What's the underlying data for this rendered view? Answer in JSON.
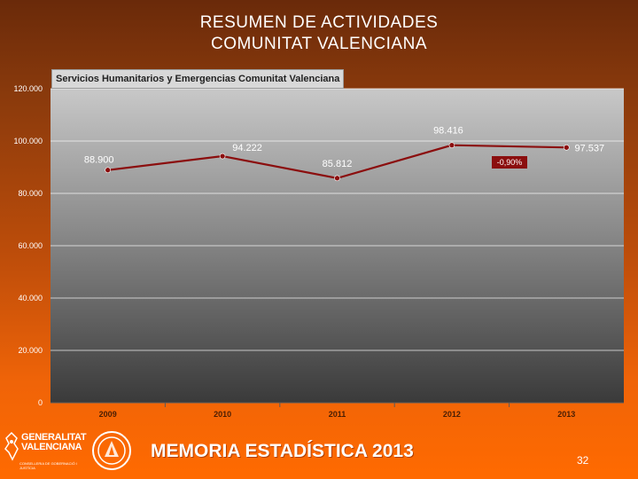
{
  "slide": {
    "title_line1": "RESUMEN DE ACTIVIDADES",
    "title_line2": "COMUNITAT VALENCIANA",
    "footer_title": "MEMORIA ESTADÍSTICA 2013",
    "page_number": "32",
    "logo_text_line1": "GENERALITAT",
    "logo_text_line2": "VALENCIANA",
    "logo_subtext": "CONSELLERIA DE GOBERNACIÓ I JUSTÍCIA"
  },
  "chart_data": {
    "type": "line",
    "title": "Servicios Humanitarios y Emergencias Comunitat Valenciana",
    "categories": [
      "2009",
      "2010",
      "2011",
      "2012",
      "2013"
    ],
    "series": [
      {
        "name": "Servicios",
        "values": [
          88900,
          94222,
          85812,
          98416,
          97537
        ],
        "labels": [
          "88.900",
          "94.222",
          "85.812",
          "98.416",
          "97.537"
        ]
      }
    ],
    "y_ticks": [
      0,
      20000,
      40000,
      60000,
      80000,
      100000,
      120000
    ],
    "y_tick_labels": [
      "0",
      "20.000",
      "40.000",
      "60.000",
      "80.000",
      "100.000",
      "120.000"
    ],
    "ylim": [
      0,
      120000
    ],
    "annotation": "-0,90%",
    "colors": {
      "line": "#8b0e0e",
      "marker": "#8b0e0e",
      "gridline": "#ffffff",
      "badge": "#8b0e0e"
    },
    "grid": true
  }
}
